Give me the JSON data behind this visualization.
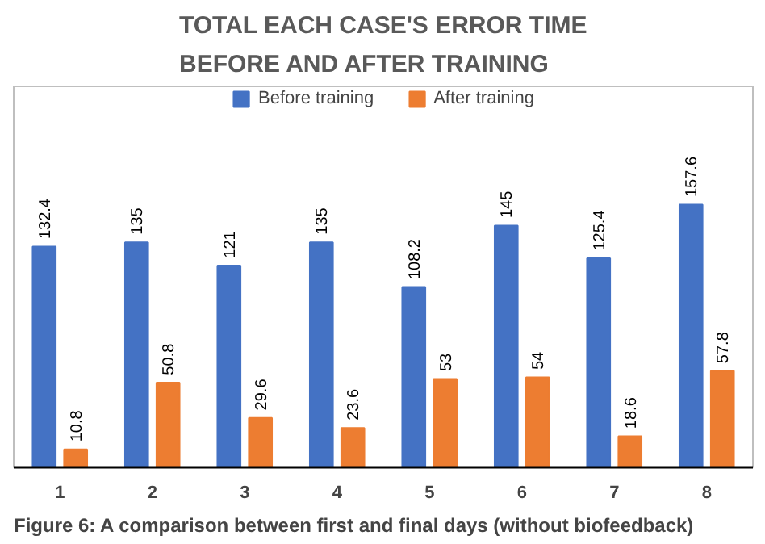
{
  "chart_data": {
    "type": "bar",
    "title": "TOTAL EACH CASE'S ERROR TIME BEFORE AND AFTER TRAINING",
    "categories": [
      "1",
      "2",
      "3",
      "4",
      "5",
      "6",
      "7",
      "8"
    ],
    "series": [
      {
        "name": "Before training",
        "color": "#4472c4",
        "values": [
          132.4,
          135,
          121,
          135,
          108.2,
          145,
          125.4,
          157.6
        ]
      },
      {
        "name": "After training",
        "color": "#ed7d31",
        "values": [
          10.8,
          50.8,
          29.6,
          23.6,
          53,
          54,
          18.6,
          57.8
        ]
      }
    ],
    "data_labels": true,
    "legend": "top",
    "grid": false,
    "tick_labels": "x",
    "annotations": [
      "Figure 6: A comparison between first and final days (without biofeedback)"
    ]
  }
}
